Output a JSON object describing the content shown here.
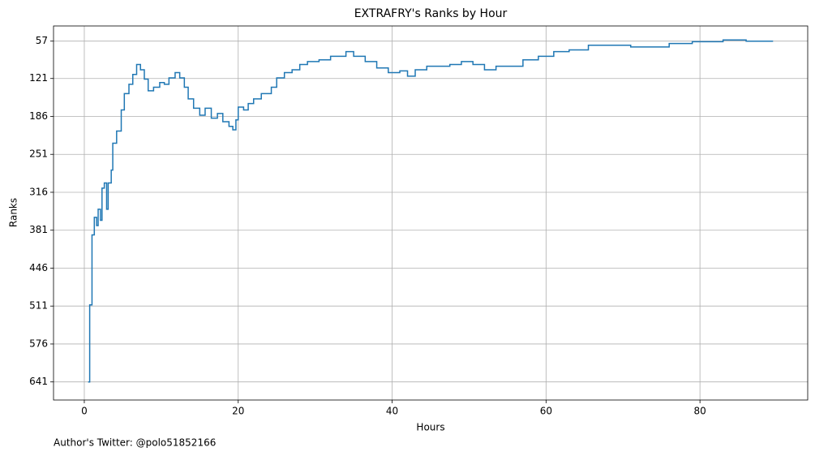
{
  "chart_data": {
    "type": "step",
    "title": "EXTRAFRY's Ranks by Hour",
    "xlabel": "Hours",
    "ylabel": "Ranks",
    "footnote": "Author's Twitter: @polo51852166",
    "xlim": [
      -4,
      94
    ],
    "xticks": [
      0,
      20,
      40,
      60,
      80
    ],
    "ylim": [
      31,
      672
    ],
    "y_inverted": true,
    "yticks": [
      57,
      121,
      186,
      251,
      316,
      381,
      446,
      511,
      576,
      641
    ],
    "grid": true,
    "series": [
      {
        "color": "#1f77b4",
        "x": [
          0.5,
          0.7,
          1.0,
          1.3,
          1.6,
          1.8,
          2.1,
          2.3,
          2.6,
          2.9,
          3.1,
          3.5,
          3.7,
          4.2,
          4.8,
          5.2,
          5.8,
          6.3,
          6.8,
          7.3,
          7.8,
          8.3,
          9.0,
          9.8,
          10.4,
          11.0,
          11.8,
          12.4,
          13.0,
          13.5,
          14.2,
          15.0,
          15.7,
          16.5,
          17.3,
          18.0,
          18.8,
          19.3,
          19.7,
          20.0,
          20.7,
          21.3,
          22.0,
          23.0,
          24.3,
          25.0,
          26.0,
          27.0,
          28.0,
          29.0,
          30.5,
          32.0,
          34.0,
          35.0,
          36.5,
          38.0,
          39.5,
          41.0,
          42.0,
          43.0,
          44.5,
          46.0,
          47.5,
          49.0,
          50.5,
          52.0,
          53.5,
          56.0,
          57.0,
          59.0,
          61.0,
          63.0,
          65.5,
          71.0,
          76.0,
          79.0,
          83.0,
          86.0,
          89.5
        ],
        "values": [
          641,
          509,
          389,
          359,
          373,
          345,
          364,
          309,
          300,
          345,
          300,
          278,
          232,
          211,
          175,
          147,
          131,
          114,
          97,
          106,
          122,
          142,
          136,
          128,
          131,
          120,
          111,
          120,
          136,
          156,
          172,
          184,
          172,
          189,
          181,
          195,
          203,
          209,
          192,
          170,
          175,
          164,
          156,
          147,
          136,
          120,
          111,
          106,
          97,
          92,
          89,
          83,
          75,
          83,
          92,
          103,
          111,
          108,
          117,
          106,
          100,
          100,
          97,
          92,
          97,
          106,
          100,
          100,
          89,
          83,
          75,
          72,
          64,
          67,
          61,
          58,
          55,
          57,
          57
        ]
      }
    ]
  }
}
